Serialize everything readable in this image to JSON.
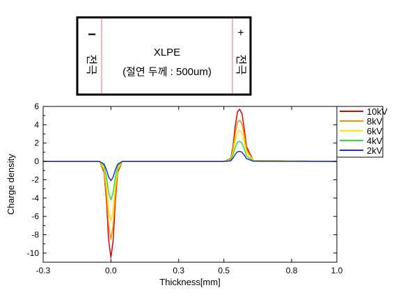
{
  "diagram": {
    "material": "XLPE",
    "thickness_note": "(절연 두께 : 500um)",
    "left_electrode": {
      "sign": "−",
      "label": "전극",
      "sign_color": "#e00000"
    },
    "right_electrode": {
      "sign": "+",
      "label": "전극"
    }
  },
  "chart_data": {
    "type": "line",
    "xlabel": "Thickness[mm]",
    "ylabel": "Charge density",
    "xlim": [
      -0.3,
      1.0
    ],
    "ylim": [
      -11,
      6
    ],
    "xticks": [
      -0.3,
      0.0,
      0.3,
      0.5,
      0.8,
      1.0
    ],
    "xtick_labels": [
      "-0.3",
      "0.0",
      "0.3",
      "0.5",
      "0.8",
      "1.0"
    ],
    "yticks": [
      -10,
      -8,
      -6,
      -4,
      -2,
      0,
      2,
      4,
      6
    ],
    "ytick_labels": [
      "-10",
      "-8",
      "-6",
      "-4",
      "-2",
      "0",
      "2",
      "4",
      "6"
    ],
    "grid": false,
    "legend_position": "top-right outside",
    "series": [
      {
        "name": "10kV",
        "color": "#e00000",
        "x": [
          -0.3,
          -0.05,
          -0.03,
          -0.02,
          -0.01,
          0.0,
          0.01,
          0.02,
          0.03,
          0.05,
          0.5,
          0.53,
          0.54,
          0.55,
          0.56,
          0.57,
          0.58,
          0.59,
          0.6,
          0.63,
          1.0
        ],
        "y": [
          0,
          0,
          -1.2,
          -4.2,
          -8.6,
          -10.5,
          -8.6,
          -4.2,
          -1.2,
          0,
          0,
          0.3,
          1.6,
          3.8,
          5.4,
          5.7,
          5.2,
          3.6,
          1.6,
          0.1,
          0
        ]
      },
      {
        "name": "8kV",
        "color": "#ff8c00",
        "x": [
          -0.3,
          -0.05,
          -0.03,
          -0.02,
          -0.01,
          0.0,
          0.01,
          0.02,
          0.03,
          0.05,
          0.5,
          0.53,
          0.54,
          0.55,
          0.56,
          0.57,
          0.58,
          0.59,
          0.6,
          0.63,
          1.0
        ],
        "y": [
          0,
          0,
          -1.0,
          -3.5,
          -7.0,
          -8.5,
          -7.0,
          -3.5,
          -1.0,
          0,
          0,
          0.2,
          1.3,
          3.0,
          4.3,
          4.5,
          4.1,
          2.9,
          1.3,
          0.1,
          0
        ]
      },
      {
        "name": "6kV",
        "color": "#ffe600",
        "x": [
          -0.3,
          -0.05,
          -0.03,
          -0.02,
          -0.01,
          0.0,
          0.01,
          0.02,
          0.03,
          0.05,
          0.5,
          0.53,
          0.54,
          0.55,
          0.56,
          0.57,
          0.58,
          0.59,
          0.6,
          0.63,
          1.0
        ],
        "y": [
          0,
          0,
          -0.8,
          -2.6,
          -5.3,
          -6.5,
          -5.3,
          -2.6,
          -0.8,
          0,
          0,
          0.2,
          1.0,
          2.3,
          3.2,
          3.4,
          3.1,
          2.2,
          1.0,
          0.1,
          0
        ]
      },
      {
        "name": "4kV",
        "color": "#33dd33",
        "x": [
          -0.3,
          -0.05,
          -0.03,
          -0.02,
          -0.01,
          0.0,
          0.01,
          0.02,
          0.03,
          0.05,
          0.5,
          0.53,
          0.54,
          0.55,
          0.56,
          0.57,
          0.58,
          0.59,
          0.6,
          0.63,
          1.0
        ],
        "y": [
          0,
          0,
          -0.5,
          -1.7,
          -3.4,
          -4.2,
          -3.4,
          -1.7,
          -0.5,
          0,
          0,
          0.1,
          0.7,
          1.5,
          2.1,
          2.2,
          2.0,
          1.4,
          0.6,
          0.05,
          0
        ]
      },
      {
        "name": "2kV",
        "color": "#1f2fd6",
        "x": [
          -0.3,
          -0.05,
          -0.03,
          -0.02,
          -0.01,
          0.0,
          0.01,
          0.02,
          0.03,
          0.05,
          0.5,
          0.53,
          0.54,
          0.55,
          0.56,
          0.57,
          0.58,
          0.59,
          0.6,
          0.63,
          1.0
        ],
        "y": [
          0,
          0,
          -0.3,
          -0.9,
          -1.7,
          -2.1,
          -1.7,
          -0.9,
          -0.3,
          0,
          0,
          0.05,
          0.35,
          0.75,
          1.05,
          1.1,
          1.0,
          0.7,
          0.3,
          0.02,
          0
        ]
      }
    ]
  }
}
